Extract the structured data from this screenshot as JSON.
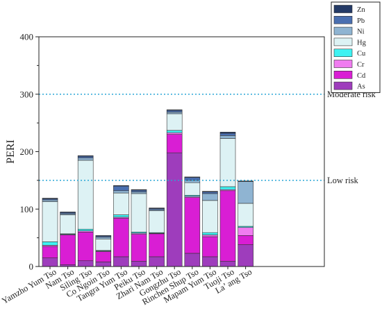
{
  "chart_data": {
    "type": "bar",
    "stacked": true,
    "title": "",
    "xlabel": "",
    "ylabel": "PERI",
    "ylim": [
      0,
      400
    ],
    "yticks": [
      0,
      100,
      200,
      300,
      400
    ],
    "grid": false,
    "legend_position": "top-right",
    "categories": [
      "Yamzho Yum Tso",
      "Nam Tso",
      "Siling Tso",
      "Co Ngoin Tso",
      "Tangra Yum Tso",
      "Peiku Tso",
      "Zhari Nam Tso",
      "Gongzhu Tso",
      "Rinchen Shup Tso",
      "Mapam Yum Tso",
      "Tuoji Tso",
      "La’ ang Tso"
    ],
    "series": [
      {
        "name": "As",
        "color": "#9e3dbc",
        "values": [
          15,
          3,
          10,
          8,
          17,
          9,
          17,
          198,
          23,
          17,
          9,
          38
        ]
      },
      {
        "name": "Cd",
        "color": "#d91ed4",
        "values": [
          20,
          52,
          50,
          18,
          67,
          47,
          40,
          32,
          97,
          35,
          123,
          16
        ]
      },
      {
        "name": "Cr",
        "color": "#f07cf0",
        "values": [
          2,
          1,
          2,
          1,
          2,
          2,
          1,
          3,
          2,
          3,
          2,
          14
        ]
      },
      {
        "name": "Cu",
        "color": "#3ef2f2",
        "values": [
          6,
          1,
          3,
          1,
          4,
          2,
          1,
          4,
          2,
          4,
          5,
          2
        ]
      },
      {
        "name": "Hg",
        "color": "#ddf2f4",
        "values": [
          70,
          33,
          120,
          20,
          38,
          67,
          38,
          29,
          22,
          56,
          84,
          40
        ]
      },
      {
        "name": "Ni",
        "color": "#8fb4d2",
        "values": [
          3,
          2,
          4,
          3,
          4,
          3,
          2,
          3,
          4,
          12,
          5,
          38
        ]
      },
      {
        "name": "Pb",
        "color": "#4a6fb0",
        "values": [
          2,
          2,
          3,
          2,
          8,
          3,
          2,
          3,
          5,
          3,
          4,
          0.5
        ]
      },
      {
        "name": "Zn",
        "color": "#243a66",
        "values": [
          1,
          1,
          1,
          1,
          1,
          1,
          1,
          1,
          1,
          1,
          2,
          0.5
        ]
      }
    ],
    "reference_lines": [
      {
        "y": 300,
        "label": "Moderate risk",
        "color": "#2aa6d6"
      },
      {
        "y": 150,
        "label": "Low risk",
        "color": "#2aa6d6"
      }
    ]
  }
}
